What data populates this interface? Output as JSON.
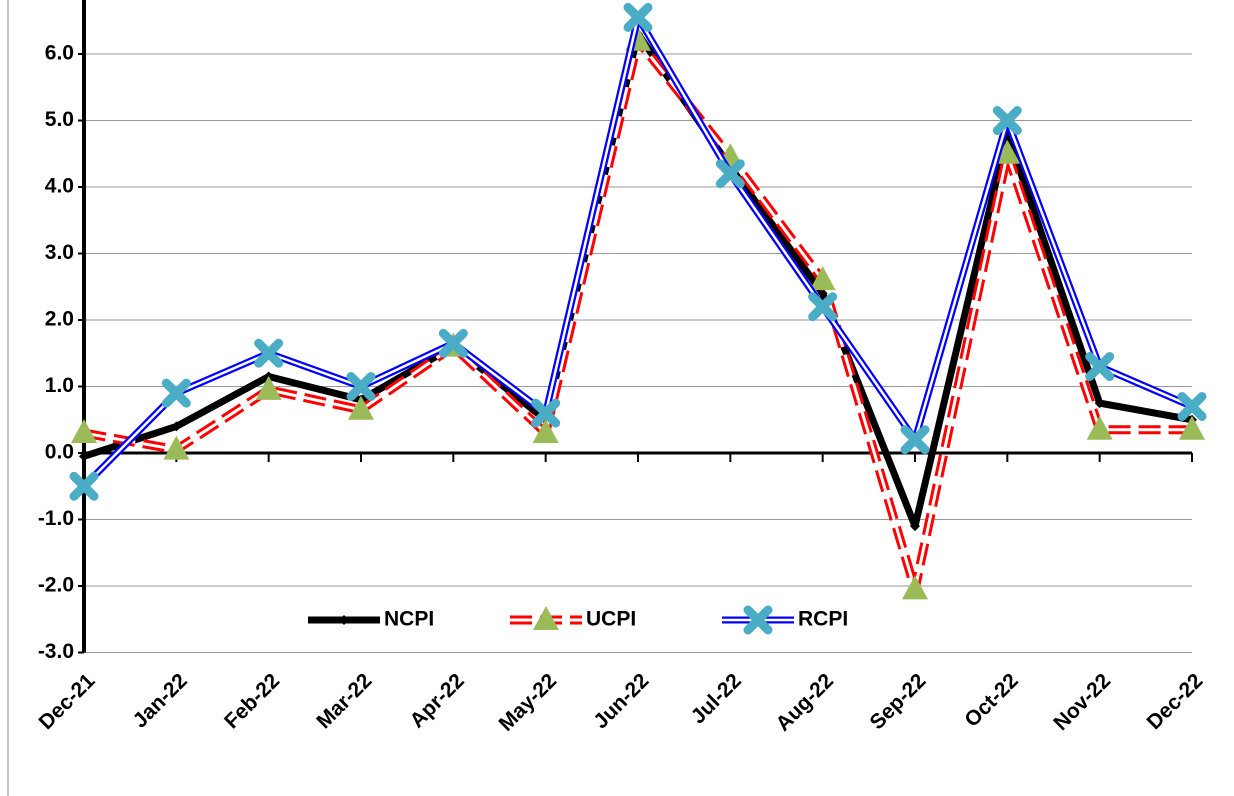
{
  "chart_data": {
    "type": "line",
    "categories": [
      "Dec-21",
      "Jan-22",
      "Feb-22",
      "Mar-22",
      "Apr-22",
      "May-22",
      "Jun-22",
      "Jul-22",
      "Aug-22",
      "Sep-22",
      "Oct-22",
      "Nov-22",
      "Dec-22"
    ],
    "series": [
      {
        "name": "NCPI",
        "color": "#000000",
        "values": [
          -0.05,
          0.4,
          1.15,
          0.8,
          1.6,
          0.5,
          6.3,
          4.3,
          2.4,
          -1.1,
          4.8,
          0.75,
          0.5
        ]
      },
      {
        "name": "UCPI",
        "color": "#ff0000",
        "values": [
          0.3,
          0.05,
          0.95,
          0.65,
          1.6,
          0.3,
          6.2,
          4.45,
          2.6,
          -2.05,
          4.5,
          0.35,
          0.35
        ]
      },
      {
        "name": "RCPI",
        "color": "#0000ff",
        "values": [
          -0.5,
          0.9,
          1.5,
          1.0,
          1.65,
          0.6,
          6.55,
          4.2,
          2.2,
          0.2,
          5.0,
          1.3,
          0.7
        ]
      }
    ],
    "ylim": [
      -3,
      7
    ],
    "yticks": [
      {
        "value": -3,
        "label": "-3.0"
      },
      {
        "value": -2,
        "label": "-2.0"
      },
      {
        "value": -1,
        "label": "-1.0"
      },
      {
        "value": 0,
        "label": "0.0"
      },
      {
        "value": 1,
        "label": "1.0"
      },
      {
        "value": 2,
        "label": "2.0"
      },
      {
        "value": 3,
        "label": "3.0"
      },
      {
        "value": 4,
        "label": "4.0"
      },
      {
        "value": 5,
        "label": "5.0"
      },
      {
        "value": 6,
        "label": "6.0"
      }
    ],
    "grid": true,
    "legend": "bottom"
  }
}
